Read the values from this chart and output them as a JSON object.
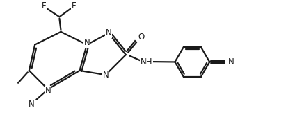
{
  "background_color": "#ffffff",
  "line_color": "#1a1a1a",
  "line_width": 1.6,
  "font_size": 8.5,
  "figsize": [
    4.24,
    1.69
  ],
  "dpi": 100,
  "xlim": [
    0,
    10
  ],
  "ylim": [
    0,
    4
  ]
}
